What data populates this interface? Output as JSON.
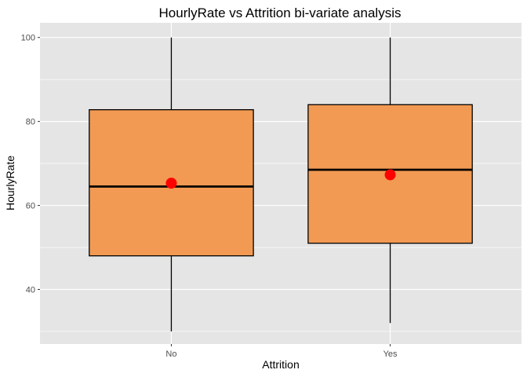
{
  "chart_data": {
    "type": "boxplot",
    "title": "HourlyRate vs Attrition bi-variate analysis",
    "xlabel": "Attrition",
    "ylabel": "HourlyRate",
    "categories": [
      "No",
      "Yes"
    ],
    "boxes": [
      {
        "category": "No",
        "min": 30,
        "q1": 48,
        "median": 64.5,
        "q3": 82.8,
        "max": 100,
        "mean": 65.3
      },
      {
        "category": "Yes",
        "min": 32,
        "q1": 51,
        "median": 68.5,
        "q3": 84,
        "max": 100,
        "mean": 67.3
      }
    ],
    "yticks": [
      40,
      60,
      80,
      100
    ],
    "ylim": [
      27,
      103.5
    ],
    "grid": true,
    "colors": {
      "panel_background": "#e5e5e5",
      "grid": "#ffffff",
      "box_fill": "#f29a53",
      "box_stroke": "#000000",
      "mean_point": "#ff0000"
    }
  }
}
